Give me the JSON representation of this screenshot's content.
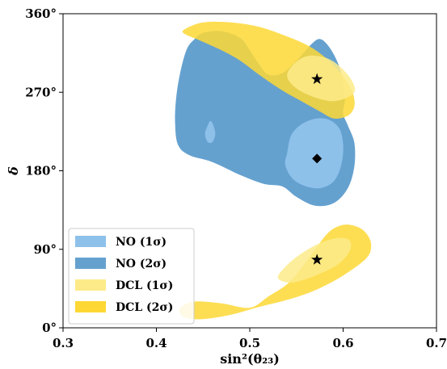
{
  "chart_data": {
    "type": "contour",
    "xlabel": "sin²(θ₂₃)",
    "ylabel": "δ",
    "xlim": [
      0.3,
      0.7
    ],
    "ylim": [
      0,
      360
    ],
    "xticks": [
      0.3,
      0.4,
      0.5,
      0.6,
      0.7
    ],
    "xtick_labels": [
      "0.3",
      "0.4",
      "0.5",
      "0.6",
      "0.7"
    ],
    "yticks": [
      0,
      90,
      180,
      270,
      360
    ],
    "ytick_labels": [
      "0°",
      "90°",
      "180°",
      "270°",
      "360°"
    ],
    "legend_position": "lower-left",
    "colors": {
      "no_1sigma": "#8ec1ea",
      "no_2sigma": "#65a1cf",
      "dcl_1sigma": "#fdeb8a",
      "dcl_2sigma": "#fdd835"
    },
    "series": [
      {
        "name": "NO (2σ)",
        "key": "no2",
        "color": "#65a1cf",
        "opacity": 1,
        "regions": [
          [
            [
              0.44,
              330
            ],
            [
              0.45,
              338
            ],
            [
              0.47,
              340
            ],
            [
              0.49,
              332
            ],
            [
              0.5,
              318
            ],
            [
              0.51,
              302
            ],
            [
              0.52,
              290
            ],
            [
              0.535,
              292
            ],
            [
              0.55,
              306
            ],
            [
              0.565,
              324
            ],
            [
              0.575,
              331
            ],
            [
              0.585,
              322
            ],
            [
              0.595,
              302
            ],
            [
              0.6,
              280
            ],
            [
              0.602,
              262
            ],
            [
              0.6,
              246
            ],
            [
              0.605,
              232
            ],
            [
              0.612,
              212
            ],
            [
              0.612,
              185
            ],
            [
              0.605,
              160
            ],
            [
              0.59,
              143
            ],
            [
              0.57,
              140
            ],
            [
              0.55,
              150
            ],
            [
              0.535,
              162
            ],
            [
              0.515,
              165
            ],
            [
              0.49,
              175
            ],
            [
              0.46,
              190
            ],
            [
              0.435,
              198
            ],
            [
              0.423,
              210
            ],
            [
              0.42,
              235
            ],
            [
              0.421,
              262
            ],
            [
              0.425,
              290
            ],
            [
              0.432,
              318
            ]
          ]
        ]
      },
      {
        "name": "NO (1σ)",
        "key": "no1",
        "color": "#8ec1ea",
        "opacity": 1,
        "regions": [
          [
            [
              0.54,
              200
            ],
            [
              0.545,
              222
            ],
            [
              0.56,
              236
            ],
            [
              0.58,
              240
            ],
            [
              0.595,
              230
            ],
            [
              0.6,
              210
            ],
            [
              0.598,
              187
            ],
            [
              0.59,
              168
            ],
            [
              0.575,
              160
            ],
            [
              0.558,
              163
            ],
            [
              0.545,
              172
            ],
            [
              0.538,
              187
            ]
          ],
          [
            [
              0.452,
              222
            ],
            [
              0.455,
              232
            ],
            [
              0.458,
              237
            ],
            [
              0.461,
              232
            ],
            [
              0.463,
              222
            ],
            [
              0.46,
              213
            ],
            [
              0.455,
              213
            ]
          ]
        ]
      },
      {
        "name": "DCL (2σ)",
        "key": "dcl2",
        "color": "#fdd835",
        "opacity": 0.85,
        "regions": [
          [
            [
              0.43,
              342
            ],
            [
              0.45,
              350
            ],
            [
              0.48,
              350
            ],
            [
              0.51,
              345
            ],
            [
              0.54,
              334
            ],
            [
              0.565,
              322
            ],
            [
              0.585,
              306
            ],
            [
              0.6,
              288
            ],
            [
              0.61,
              270
            ],
            [
              0.612,
              254
            ],
            [
              0.605,
              243
            ],
            [
              0.59,
              240
            ],
            [
              0.575,
              248
            ],
            [
              0.555,
              260
            ],
            [
              0.535,
              272
            ],
            [
              0.51,
              290
            ],
            [
              0.49,
              306
            ],
            [
              0.47,
              318
            ],
            [
              0.445,
              330
            ],
            [
              0.43,
              337
            ]
          ],
          [
            [
              0.5,
              23
            ],
            [
              0.52,
              36
            ],
            [
              0.54,
              50
            ],
            [
              0.555,
              68
            ],
            [
              0.57,
              90
            ],
            [
              0.585,
              110
            ],
            [
              0.6,
              118
            ],
            [
              0.615,
              116
            ],
            [
              0.625,
              108
            ],
            [
              0.63,
              95
            ],
            [
              0.625,
              80
            ],
            [
              0.6,
              60
            ],
            [
              0.57,
              43
            ],
            [
              0.54,
              32
            ],
            [
              0.51,
              24
            ],
            [
              0.48,
              15
            ],
            [
              0.45,
              10
            ],
            [
              0.43,
              12
            ],
            [
              0.425,
              22
            ],
            [
              0.44,
              30
            ],
            [
              0.47,
              28
            ]
          ]
        ]
      },
      {
        "name": "DCL (1σ)",
        "key": "dcl1",
        "color": "#fdeb8a",
        "opacity": 0.85,
        "regions": [
          [
            [
              0.54,
              290
            ],
            [
              0.55,
              305
            ],
            [
              0.565,
              312
            ],
            [
              0.585,
              308
            ],
            [
              0.6,
              296
            ],
            [
              0.61,
              282
            ],
            [
              0.612,
              270
            ],
            [
              0.6,
              262
            ],
            [
              0.585,
              260
            ],
            [
              0.565,
              266
            ],
            [
              0.548,
              276
            ]
          ],
          [
            [
              0.53,
              58
            ],
            [
              0.54,
              72
            ],
            [
              0.555,
              85
            ],
            [
              0.575,
              97
            ],
            [
              0.595,
              103
            ],
            [
              0.607,
              100
            ],
            [
              0.607,
              88
            ],
            [
              0.595,
              73
            ],
            [
              0.575,
              62
            ],
            [
              0.555,
              54
            ],
            [
              0.54,
              52
            ]
          ]
        ]
      }
    ],
    "markers": [
      {
        "label": "NO best fit",
        "symbol": "diamond",
        "x": 0.572,
        "y": 194
      },
      {
        "label": "DCL best fit",
        "symbol": "star",
        "x": 0.572,
        "y": 285
      },
      {
        "label": "DCL best fit",
        "symbol": "star",
        "x": 0.572,
        "y": 78
      }
    ],
    "legend": [
      {
        "label": "NO (1σ)",
        "key": "no1"
      },
      {
        "label": "NO (2σ)",
        "key": "no2"
      },
      {
        "label": "DCL (1σ)",
        "key": "dcl1"
      },
      {
        "label": "DCL (2σ)",
        "key": "dcl2"
      }
    ]
  }
}
